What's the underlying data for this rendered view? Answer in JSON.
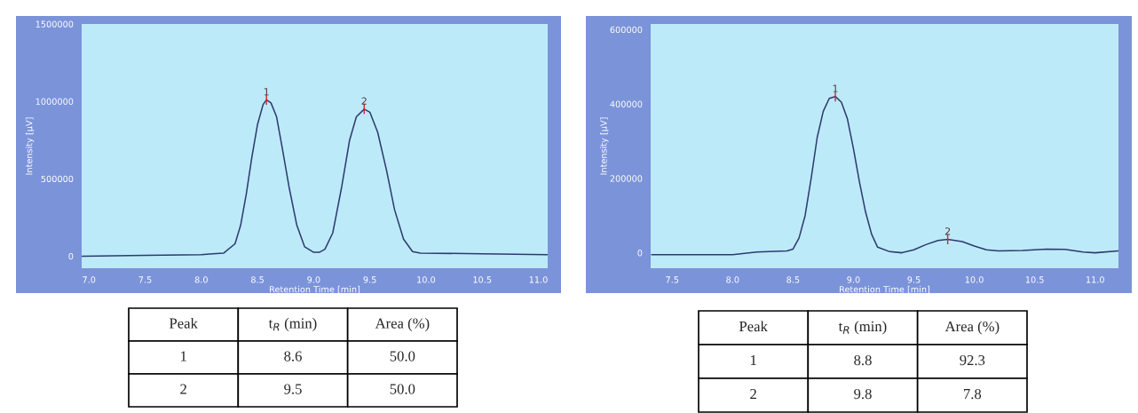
{
  "chart_data": [
    {
      "type": "line",
      "xlabel": "Retention Time [min]",
      "ylabel": "Intensity [µV]",
      "color": "#2d3a70",
      "x": [
        6.94,
        7.5,
        8.0,
        8.1,
        8.2,
        8.3,
        8.35,
        8.4,
        8.45,
        8.5,
        8.55,
        8.58,
        8.62,
        8.67,
        8.72,
        8.78,
        8.85,
        8.92,
        9.0,
        9.05,
        9.1,
        9.17,
        9.25,
        9.32,
        9.38,
        9.45,
        9.5,
        9.57,
        9.65,
        9.72,
        9.8,
        9.88,
        9.95,
        10.5,
        11.08
      ],
      "values": [
        0,
        5000,
        10000,
        15000,
        20000,
        80000,
        200000,
        400000,
        640000,
        850000,
        980000,
        1010000,
        990000,
        900000,
        700000,
        450000,
        200000,
        60000,
        25000,
        25000,
        45000,
        150000,
        450000,
        750000,
        900000,
        950000,
        930000,
        800000,
        550000,
        300000,
        110000,
        30000,
        20000,
        15000,
        10000
      ],
      "xlim": [
        6.935,
        11.083
      ],
      "ylim": [
        -78000,
        1500000
      ],
      "xticks": [
        {
          "value": 7.0,
          "label": "7.0"
        },
        7.5,
        {
          "value": 8.0,
          "label": "8.0"
        },
        8.5,
        {
          "value": 9.0,
          "label": "9.0"
        },
        9.5,
        {
          "value": 10.0,
          "label": "10.0"
        },
        10.5,
        {
          "value": 11.0,
          "label": "11.0"
        }
      ],
      "yticks": [
        0,
        500000,
        1000000,
        1500000
      ],
      "grid": false,
      "annotations": [
        {
          "text": "1",
          "x": 8.58,
          "y": 1010000
        },
        {
          "text": "2",
          "x": 9.45,
          "y": 950000
        },
        "Peak",
        "t$_{R}$ (min)",
        "Area (%)",
        "1",
        "8.6",
        "50.0",
        "2",
        "9.5",
        "50.0"
      ]
    },
    {
      "type": "line",
      "xlabel": "Retention Time [min]",
      "ylabel": "Intensity [µV]",
      "color": "#2d3a70",
      "x": [
        7.33,
        8.0,
        8.2,
        8.45,
        8.5,
        8.55,
        8.6,
        8.65,
        8.7,
        8.75,
        8.8,
        8.85,
        8.9,
        8.95,
        9.0,
        9.05,
        9.1,
        9.15,
        9.2,
        9.3,
        9.4,
        9.5,
        9.6,
        9.7,
        9.78,
        9.9,
        10.0,
        10.1,
        10.2,
        10.4,
        10.6,
        10.75,
        10.9,
        11.0,
        11.19
      ],
      "values": [
        -5000,
        -5000,
        2000,
        5000,
        10000,
        40000,
        100000,
        200000,
        310000,
        380000,
        415000,
        420000,
        405000,
        360000,
        280000,
        190000,
        110000,
        50000,
        15000,
        3000,
        0,
        8000,
        22000,
        33000,
        36000,
        30000,
        18000,
        8000,
        5000,
        6000,
        10000,
        9000,
        2000,
        0,
        5000
      ],
      "xlim": [
        7.322,
        11.193
      ],
      "ylim": [
        -41500,
        615000
      ],
      "xticks": [
        7.5,
        {
          "value": 8.0,
          "label": "8.0"
        },
        8.5,
        {
          "value": 9.0,
          "label": "9.0"
        },
        9.5,
        {
          "value": 10.0,
          "label": "10.0"
        },
        10.5,
        {
          "value": 11.0,
          "label": "11.0"
        }
      ],
      "yticks": [
        0,
        200000,
        400000,
        600000
      ],
      "grid": false,
      "annotations": [
        {
          "text": "1",
          "x": 8.85,
          "y": 420000
        },
        {
          "text": "2",
          "x": 9.78,
          "y": 36000
        },
        "Peak",
        "t$_{R}$ (min)",
        "Area (%)",
        "1",
        "8.8",
        "92.3",
        "2",
        "9.8",
        "7.8"
      ]
    }
  ]
}
